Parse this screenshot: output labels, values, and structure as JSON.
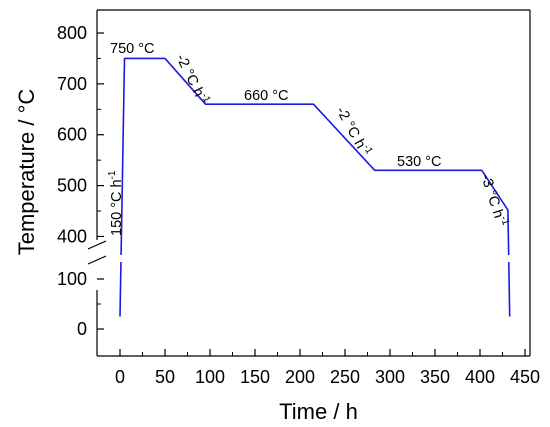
{
  "chart_data": {
    "type": "line",
    "xlabel": "Time / h",
    "ylabel": "Temperature / °C",
    "xlim": [
      -20,
      450
    ],
    "x_ticks": [
      0,
      50,
      100,
      150,
      200,
      250,
      300,
      350,
      400,
      450
    ],
    "y_axis_break": true,
    "y_lower_range": [
      -30,
      180
    ],
    "y_lower_ticks": [
      0,
      100
    ],
    "y_upper_range": [
      350,
      820
    ],
    "y_upper_ticks": [
      400,
      500,
      600,
      700,
      800
    ],
    "grid": false,
    "legend": "none",
    "series": [
      {
        "color": "#1a1ae6",
        "points": [
          {
            "x": 0,
            "y": 25
          },
          {
            "x": 5,
            "y": 750
          },
          {
            "x": 50,
            "y": 750
          },
          {
            "x": 95,
            "y": 660
          },
          {
            "x": 215,
            "y": 660
          },
          {
            "x": 283,
            "y": 530
          },
          {
            "x": 402,
            "y": 530
          },
          {
            "x": 431,
            "y": 452
          },
          {
            "x": 433,
            "y": 25
          }
        ]
      }
    ],
    "annotations": [
      {
        "text": "750 °C"
      },
      {
        "text": "660 °C"
      },
      {
        "text": "530 °C"
      },
      {
        "text": "150 °C h",
        "sup": "-1"
      },
      {
        "text": "-2 °C h",
        "sup": "-1"
      },
      {
        "text": "-2 °C h",
        "sup": "-1"
      },
      {
        "text": "-3 °C h",
        "sup": "-1"
      }
    ]
  }
}
